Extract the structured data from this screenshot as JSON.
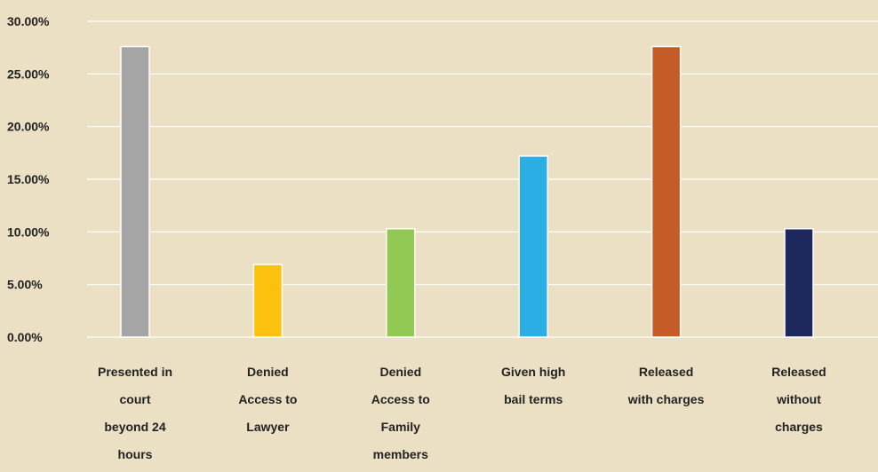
{
  "chart_data": {
    "type": "bar",
    "categories": [
      [
        "Presented in",
        "court",
        "beyond 24",
        "hours"
      ],
      [
        "Denied",
        "Access to",
        "Lawyer"
      ],
      [
        "Denied",
        "Access to",
        "Family",
        "members"
      ],
      [
        "Given high",
        "bail terms"
      ],
      [
        "Released",
        "with charges"
      ],
      [
        "Released",
        "without",
        "charges"
      ]
    ],
    "values": [
      27.6,
      6.9,
      10.3,
      17.2,
      27.6,
      10.3
    ],
    "colors": [
      "#a5a5a5",
      "#fcc00f",
      "#92c954",
      "#2aaee3",
      "#c55b26",
      "#1f285c"
    ],
    "ylim": [
      0,
      30
    ],
    "yticks": [
      "0.00%",
      "5.00%",
      "10.00%",
      "15.00%",
      "20.00%",
      "25.00%",
      "30.00%"
    ],
    "grid": true,
    "xlabel": "",
    "ylabel": "",
    "title": ""
  }
}
